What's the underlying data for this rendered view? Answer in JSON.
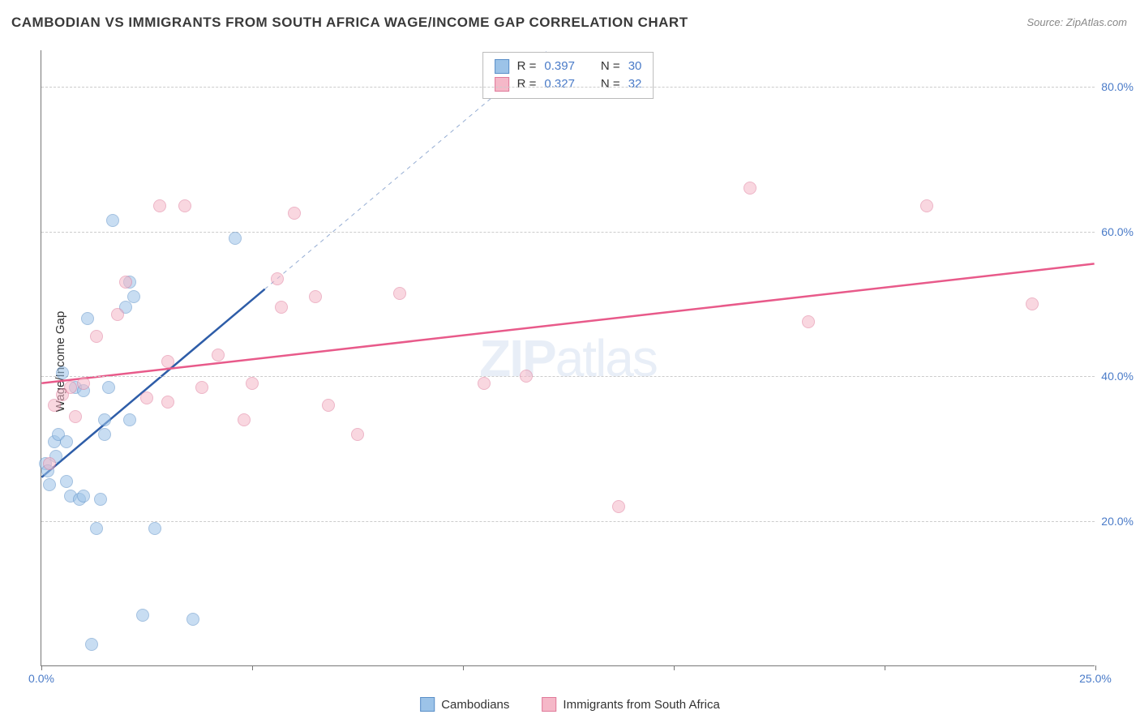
{
  "title": "CAMBODIAN VS IMMIGRANTS FROM SOUTH AFRICA WAGE/INCOME GAP CORRELATION CHART",
  "source": "Source: ZipAtlas.com",
  "ylabel": "Wage/Income Gap",
  "watermark_a": "ZIP",
  "watermark_b": "atlas",
  "chart": {
    "type": "scatter",
    "background_color": "#ffffff",
    "grid_color": "#cccccc",
    "axis_color": "#777777",
    "tick_label_color": "#4a7bc8",
    "xlim": [
      0,
      25
    ],
    "ylim": [
      0,
      85
    ],
    "yticks": [
      20,
      40,
      60,
      80
    ],
    "ytick_labels": [
      "20.0%",
      "40.0%",
      "60.0%",
      "80.0%"
    ],
    "xticks": [
      0,
      5,
      10,
      15,
      20,
      25
    ],
    "xtick_labels": [
      "0.0%",
      "",
      "",
      "",
      "",
      "25.0%"
    ],
    "marker_radius": 8,
    "marker_opacity": 0.55,
    "series": [
      {
        "name": "Cambodians",
        "color_fill": "#9cc3e8",
        "color_stroke": "#5a8fc8",
        "trend_color": "#2e5da8",
        "trend_width": 2.5,
        "trend_dashed_extension": true,
        "trend_x1": 0.0,
        "trend_y1": 26.0,
        "trend_x2": 5.3,
        "trend_y2": 52.0,
        "R": "0.397",
        "N": "30",
        "points": [
          {
            "x": 0.1,
            "y": 28.0
          },
          {
            "x": 0.2,
            "y": 25.0
          },
          {
            "x": 0.15,
            "y": 27.0
          },
          {
            "x": 0.3,
            "y": 31.0
          },
          {
            "x": 0.35,
            "y": 29.0
          },
          {
            "x": 0.4,
            "y": 32.0
          },
          {
            "x": 0.5,
            "y": 40.5
          },
          {
            "x": 0.6,
            "y": 25.5
          },
          {
            "x": 0.6,
            "y": 31.0
          },
          {
            "x": 0.7,
            "y": 23.5
          },
          {
            "x": 0.8,
            "y": 38.5
          },
          {
            "x": 0.9,
            "y": 23.0
          },
          {
            "x": 1.0,
            "y": 23.5
          },
          {
            "x": 1.0,
            "y": 38.0
          },
          {
            "x": 1.1,
            "y": 48.0
          },
          {
            "x": 1.3,
            "y": 19.0
          },
          {
            "x": 1.4,
            "y": 23.0
          },
          {
            "x": 1.5,
            "y": 32.0
          },
          {
            "x": 1.5,
            "y": 34.0
          },
          {
            "x": 1.6,
            "y": 38.5
          },
          {
            "x": 1.7,
            "y": 61.5
          },
          {
            "x": 2.0,
            "y": 49.5
          },
          {
            "x": 2.1,
            "y": 34.0
          },
          {
            "x": 2.1,
            "y": 53.0
          },
          {
            "x": 2.2,
            "y": 51.0
          },
          {
            "x": 2.4,
            "y": 7.0
          },
          {
            "x": 2.7,
            "y": 19.0
          },
          {
            "x": 3.6,
            "y": 6.5
          },
          {
            "x": 4.6,
            "y": 59.0
          },
          {
            "x": 1.2,
            "y": 3.0
          }
        ]
      },
      {
        "name": "Immigrants from South Africa",
        "color_fill": "#f5b8c8",
        "color_stroke": "#e07a9a",
        "trend_color": "#e85a8a",
        "trend_width": 2.5,
        "trend_dashed_extension": false,
        "trend_x1": 0.0,
        "trend_y1": 39.0,
        "trend_x2": 25.0,
        "trend_y2": 55.5,
        "R": "0.327",
        "N": "32",
        "points": [
          {
            "x": 0.2,
            "y": 28.0
          },
          {
            "x": 0.3,
            "y": 36.0
          },
          {
            "x": 0.5,
            "y": 37.5
          },
          {
            "x": 0.7,
            "y": 38.5
          },
          {
            "x": 0.8,
            "y": 34.5
          },
          {
            "x": 1.0,
            "y": 39.0
          },
          {
            "x": 1.3,
            "y": 45.5
          },
          {
            "x": 1.8,
            "y": 48.5
          },
          {
            "x": 2.0,
            "y": 53.0
          },
          {
            "x": 2.5,
            "y": 37.0
          },
          {
            "x": 2.8,
            "y": 63.5
          },
          {
            "x": 3.0,
            "y": 42.0
          },
          {
            "x": 3.0,
            "y": 36.5
          },
          {
            "x": 3.4,
            "y": 63.5
          },
          {
            "x": 3.8,
            "y": 38.5
          },
          {
            "x": 4.2,
            "y": 43.0
          },
          {
            "x": 4.8,
            "y": 34.0
          },
          {
            "x": 5.0,
            "y": 39.0
          },
          {
            "x": 5.6,
            "y": 53.5
          },
          {
            "x": 5.7,
            "y": 49.5
          },
          {
            "x": 6.0,
            "y": 62.5
          },
          {
            "x": 6.5,
            "y": 51.0
          },
          {
            "x": 6.8,
            "y": 36.0
          },
          {
            "x": 7.5,
            "y": 32.0
          },
          {
            "x": 8.5,
            "y": 51.5
          },
          {
            "x": 10.5,
            "y": 39.0
          },
          {
            "x": 11.5,
            "y": 40.0
          },
          {
            "x": 13.7,
            "y": 22.0
          },
          {
            "x": 16.8,
            "y": 66.0
          },
          {
            "x": 18.2,
            "y": 47.5
          },
          {
            "x": 21.0,
            "y": 63.5
          },
          {
            "x": 23.5,
            "y": 50.0
          }
        ]
      }
    ]
  },
  "legend_bottom": [
    {
      "label": "Cambodians",
      "fill": "#9cc3e8",
      "stroke": "#5a8fc8"
    },
    {
      "label": "Immigrants from South Africa",
      "fill": "#f5b8c8",
      "stroke": "#e07a9a"
    }
  ]
}
